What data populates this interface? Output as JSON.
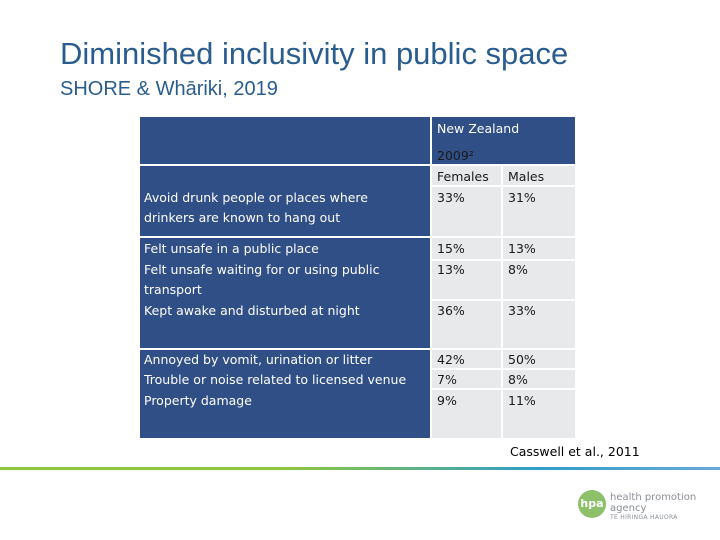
{
  "slide": {
    "title": "Diminished inclusivity in public space",
    "subtitle": "SHORE & Whāriki, 2019"
  },
  "table": {
    "header_region": "New Zealand",
    "header_year": "2009²",
    "col_females": "Females",
    "col_males": "Males",
    "rows": [
      {
        "label_line1": "Avoid drunk people or places where",
        "label_line2": "drinkers are known to hang out",
        "females": "33%",
        "males": "31%"
      },
      {
        "label_line1": "Felt unsafe in a public place",
        "females": "15%",
        "males": "13%"
      },
      {
        "label_line1": "Felt unsafe waiting for or using public",
        "label_line2": "transport",
        "females": "13%",
        "males": "8%"
      },
      {
        "label_line1": "Kept awake and disturbed at night",
        "females": "36%",
        "males": "33%"
      },
      {
        "label_line1": "Annoyed by vomit, urination or litter",
        "females": "42%",
        "males": "50%"
      },
      {
        "label_line1": "Trouble or noise related to licensed venue",
        "females": "7%",
        "males": "8%"
      },
      {
        "label_line1": "Property damage",
        "females": "9%",
        "males": "11%"
      }
    ]
  },
  "citation": "Casswell et al., 2011",
  "logo": {
    "mark": "hpa",
    "line1": "health promotion",
    "line2": "agency",
    "tagline": "TE HIRINGA HAUORA"
  },
  "colors": {
    "title": "#2a5d8f",
    "header_fill": "#2f4f86",
    "cell_fill": "#e8e9eb"
  }
}
